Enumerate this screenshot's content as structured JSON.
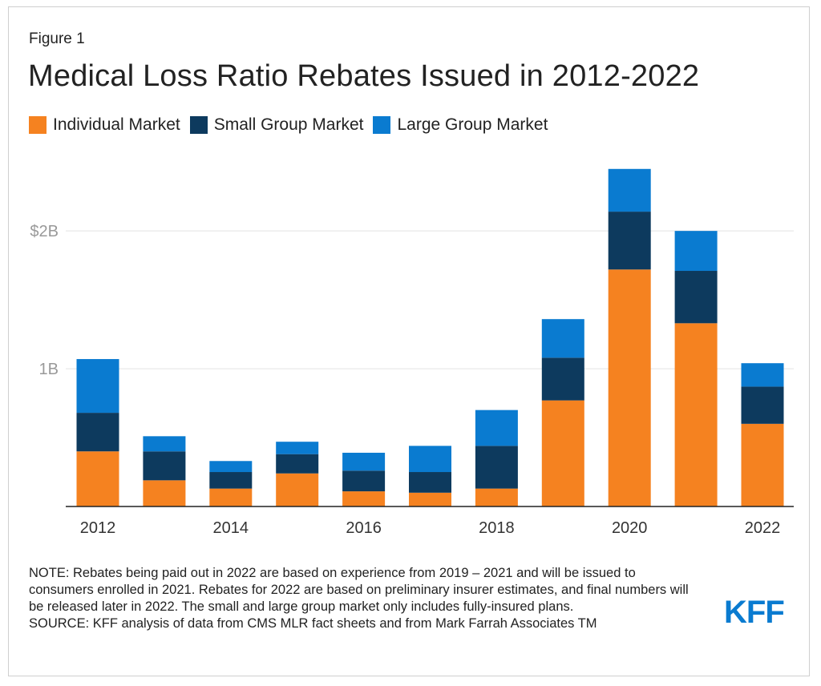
{
  "figure_label": "Figure 1",
  "title": "Medical Loss Ratio Rebates Issued in 2012-2022",
  "colors": {
    "individual": "#f58220",
    "small_group": "#0d3a5e",
    "large_group": "#0a7bd0",
    "grid": "#e3e3e3",
    "axis": "#222222",
    "tick_text": "#999999"
  },
  "legend": [
    "Individual Market",
    "Small Group Market",
    "Large Group Market"
  ],
  "chart_data": {
    "type": "bar",
    "stacked": true,
    "title": "Medical Loss Ratio Rebates Issued in 2012-2022",
    "categories": [
      "2012",
      "2013",
      "2014",
      "2015",
      "2016",
      "2017",
      "2018",
      "2019",
      "2020",
      "2021",
      "2022"
    ],
    "x_tick_labels": [
      "2012",
      "",
      "2014",
      "",
      "2016",
      "",
      "2018",
      "",
      "2020",
      "",
      "2022"
    ],
    "series": [
      {
        "name": "Individual Market",
        "values": [
          0.4,
          0.19,
          0.13,
          0.24,
          0.11,
          0.1,
          0.13,
          0.77,
          1.72,
          1.33,
          0.6
        ]
      },
      {
        "name": "Small Group Market",
        "values": [
          0.28,
          0.21,
          0.12,
          0.14,
          0.15,
          0.15,
          0.31,
          0.31,
          0.42,
          0.38,
          0.27
        ]
      },
      {
        "name": "Large Group Market",
        "values": [
          0.39,
          0.11,
          0.08,
          0.09,
          0.13,
          0.19,
          0.26,
          0.28,
          0.31,
          0.29,
          0.17
        ]
      }
    ],
    "ylim": [
      0,
      2.6
    ],
    "y_ticks": [
      {
        "value": 1,
        "label": "1B"
      },
      {
        "value": 2,
        "label": "$2B"
      }
    ],
    "xlabel": "",
    "ylabel": "",
    "grid": true,
    "legend_position": "top-left"
  },
  "note": "NOTE: Rebates being paid out in 2022 are based on experience from 2019 – 2021 and will be issued to consumers enrolled in 2021. Rebates for 2022 are based on preliminary insurer estimates, and final numbers will be released later in 2022. The small and large group market only includes fully-insured plans.",
  "source": "SOURCE: KFF analysis of data from CMS MLR fact sheets and from Mark Farrah Associates TM",
  "logo_text": "KFF"
}
